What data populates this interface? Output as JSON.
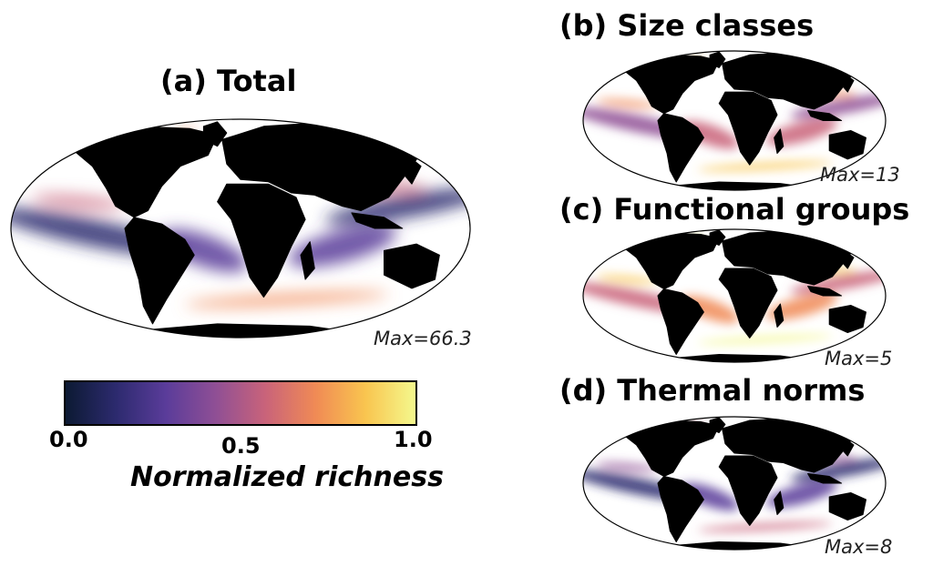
{
  "panels": [
    {
      "id": "a",
      "title": "(a) Total",
      "max_label": "Max=66.3"
    },
    {
      "id": "b",
      "title": "(b) Size classes",
      "max_label": "Max=13"
    },
    {
      "id": "c",
      "title": "(c) Functional groups",
      "max_label": "Max=5"
    },
    {
      "id": "d",
      "title": "(d) Thermal norms",
      "max_label": "Max=8"
    }
  ],
  "colorbar": {
    "title": "Normalized richness",
    "ticks": [
      "0.0",
      "0.5",
      "1.0"
    ],
    "range": [
      0.0,
      1.0
    ],
    "colors": [
      "#0c1a33",
      "#2c2a6e",
      "#5a3c9a",
      "#8f4f95",
      "#c9637a",
      "#f08a55",
      "#f9c54f",
      "#f4f88d"
    ]
  },
  "colors": {
    "land": "#000000",
    "outline": "#000000"
  }
}
